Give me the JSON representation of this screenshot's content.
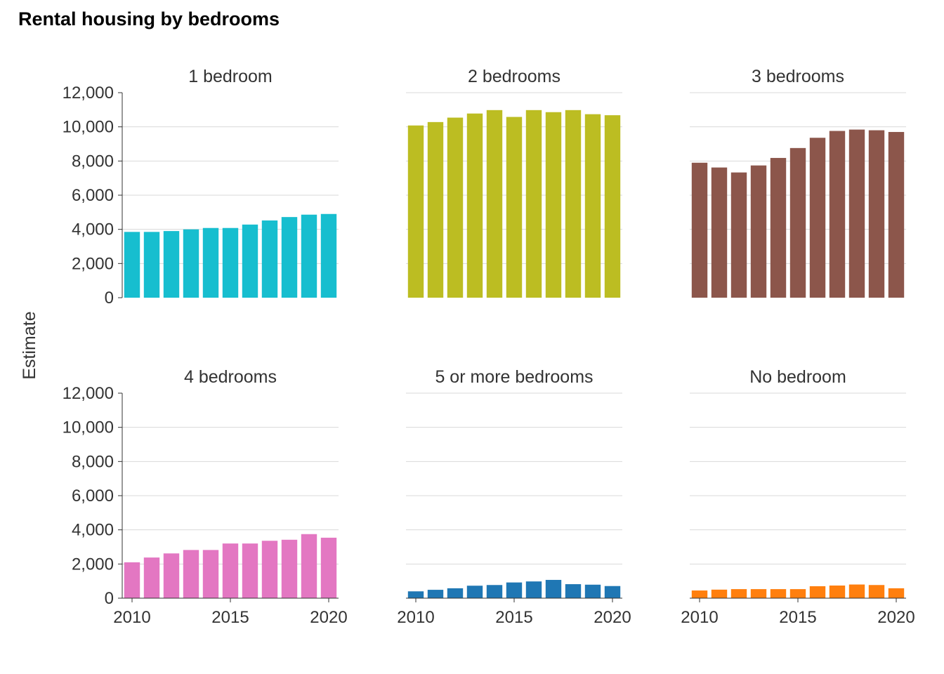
{
  "chart_data": {
    "type": "bar",
    "title": "Rental housing by bedrooms",
    "ylabel": "Estimate",
    "xlabel": "",
    "ylim": [
      0,
      12000
    ],
    "yticks": [
      "0",
      "2,000",
      "4,000",
      "6,000",
      "8,000",
      "10,000",
      "12,000"
    ],
    "xticks": [
      "2010",
      "2015",
      "2020"
    ],
    "grid": true,
    "x": [
      2010,
      2011,
      2012,
      2013,
      2014,
      2015,
      2016,
      2017,
      2018,
      2019,
      2020
    ],
    "series": [
      {
        "name": "1 bedroom",
        "color": "#17becf",
        "values": [
          3850,
          3850,
          3900,
          4000,
          4080,
          4080,
          4280,
          4520,
          4720,
          4860,
          4900
        ]
      },
      {
        "name": "2 bedrooms",
        "color": "#bcbd22",
        "values": [
          10080,
          10280,
          10540,
          10780,
          10980,
          10580,
          10980,
          10860,
          10980,
          10740,
          10680
        ]
      },
      {
        "name": "3 bedrooms",
        "color": "#8c564b",
        "values": [
          7900,
          7620,
          7330,
          7740,
          8180,
          8760,
          9360,
          9760,
          9840,
          9800,
          9700
        ]
      },
      {
        "name": "4 bedrooms",
        "color": "#e377c2",
        "values": [
          2100,
          2380,
          2620,
          2820,
          2820,
          3200,
          3200,
          3360,
          3420,
          3750,
          3540
        ]
      },
      {
        "name": "5 or more bedrooms",
        "color": "#1f77b4",
        "values": [
          400,
          490,
          580,
          730,
          770,
          920,
          980,
          1070,
          820,
          790,
          710
        ]
      },
      {
        "name": "No bedroom",
        "color": "#ff7f0e",
        "values": [
          450,
          500,
          530,
          530,
          530,
          530,
          700,
          740,
          800,
          770,
          580
        ]
      }
    ]
  }
}
